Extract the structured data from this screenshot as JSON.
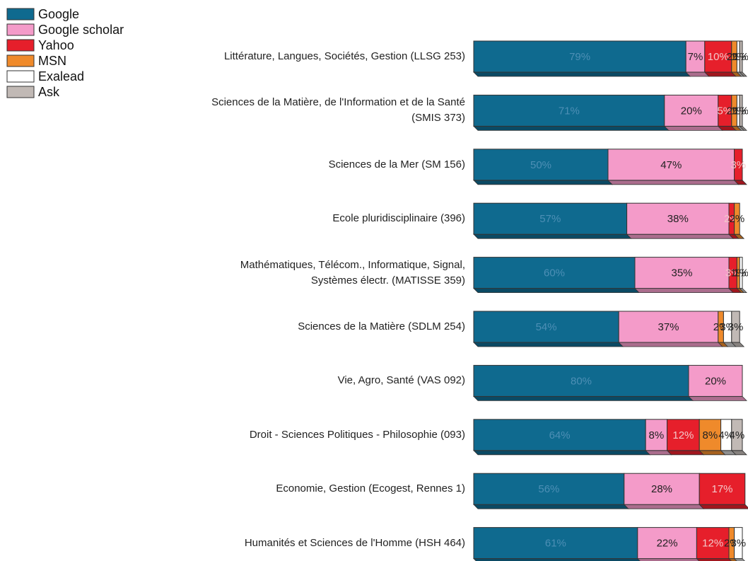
{
  "chart_data": {
    "type": "stacked-bar-horizontal",
    "categories": [
      "Littérature, Langues, Sociétés, Gestion (LLSG 253)",
      "Sciences de la Matière, de l'Information et de la Santé\n(SMIS 373)",
      "Sciences de la Mer (SM 156)",
      "Ecole pluridisciplinaire (396)",
      "Mathématiques, Télécom., Informatique, Signal,\nSystèmes électr. (MATISSE 359)",
      "Sciences de la Matière (SDLM 254)",
      "Vie, Agro, Santé (VAS 092)",
      "Droit - Sciences Politiques - Philosophie (093)",
      "Economie, Gestion (Ecogest, Rennes 1)",
      "Humanités et Sciences de l'Homme (HSH 464)"
    ],
    "xlim": [
      0,
      100
    ],
    "legend": "top-left",
    "series": [
      {
        "name": "Google",
        "color": "#0f6a8f",
        "values": [
          79,
          71,
          50,
          57,
          60,
          54,
          80,
          64,
          56,
          61
        ],
        "value_labels": [
          "79%",
          "71%",
          "50%",
          "57%",
          "60%",
          "54%",
          "80%",
          "64%",
          "56%",
          "61%"
        ]
      },
      {
        "name": "Google scholar",
        "color": "#f49bc9",
        "values": [
          7,
          20,
          47,
          38,
          35,
          37,
          20,
          8,
          28,
          22
        ],
        "value_labels": [
          "7%",
          "20%",
          "47%",
          "38%",
          "35%",
          "37%",
          "20%",
          "8%",
          "28%",
          "22%"
        ]
      },
      {
        "name": "Yahoo",
        "color": "#e61f2b",
        "values": [
          10,
          5,
          3,
          2,
          3,
          null,
          null,
          12,
          17,
          12
        ],
        "value_labels": [
          "10%",
          "5%",
          "3%",
          "2%",
          "3%",
          null,
          null,
          "12%",
          "17%",
          "12%"
        ]
      },
      {
        "name": "MSN",
        "color": "#ef8a2b",
        "values": [
          2,
          2,
          null,
          2,
          1,
          2,
          null,
          8,
          null,
          2
        ],
        "value_labels": [
          "2%",
          "2%",
          null,
          "2%",
          "1%",
          "2%",
          null,
          "8%",
          null,
          "2%"
        ]
      },
      {
        "name": "Exalead",
        "color": "#ffffff",
        "values": [
          1,
          1,
          null,
          null,
          1,
          3,
          null,
          4,
          null,
          3
        ],
        "value_labels": [
          "1%",
          "1%",
          null,
          null,
          "1%",
          "3%",
          null,
          "4%",
          null,
          "3%"
        ]
      },
      {
        "name": "Ask",
        "color": "#c1b9b5",
        "values": [
          1,
          1,
          null,
          null,
          null,
          3,
          null,
          4,
          null,
          null
        ],
        "value_labels": [
          "1%",
          "1%",
          null,
          null,
          null,
          "3%",
          null,
          "4%",
          null,
          null
        ]
      }
    ]
  }
}
